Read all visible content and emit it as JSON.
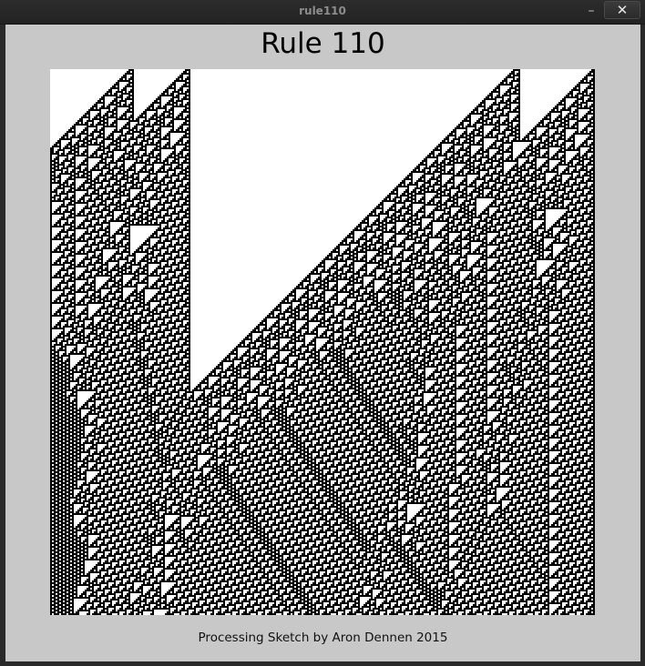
{
  "window": {
    "title": "rule110",
    "minimize_label": "–",
    "close_label": "✕"
  },
  "sketch": {
    "title": "Rule 110",
    "credit": "Processing Sketch by Aron Dennen 2015",
    "background_color": "#c8c8c8",
    "cell_on_color": "#000000",
    "cell_off_color": "#ffffff",
    "rule_number": 110
  }
}
